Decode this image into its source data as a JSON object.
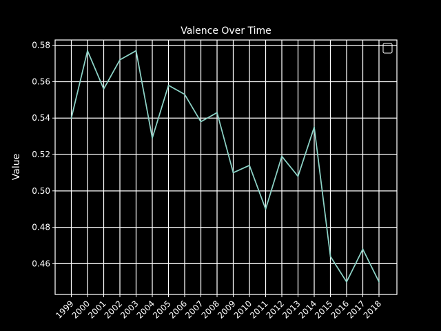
{
  "chart_data": {
    "type": "line",
    "title": "Valence Over Time",
    "xlabel": "",
    "ylabel": "Value",
    "x": [
      "1999",
      "2000",
      "2001",
      "2002",
      "2003",
      "2004",
      "2005",
      "2006",
      "2007",
      "2008",
      "2009",
      "2010",
      "2011",
      "2012",
      "2013",
      "2014",
      "2015",
      "2016",
      "2017",
      "2018"
    ],
    "series": [
      {
        "values": [
          0.54,
          0.577,
          0.556,
          0.572,
          0.577,
          0.529,
          0.558,
          0.553,
          0.538,
          0.543,
          0.51,
          0.514,
          0.49,
          0.519,
          0.508,
          0.535,
          0.464,
          0.45,
          0.468,
          0.45
        ],
        "color": "#8dd3c7"
      }
    ],
    "yticks": [
      "0.46",
      "0.48",
      "0.50",
      "0.52",
      "0.54",
      "0.56",
      "0.58"
    ],
    "ylim": [
      0.4431,
      0.5829
    ],
    "grid": true,
    "legend": "top-right",
    "colors": {
      "background": "#000000",
      "foreground": "#ffffff"
    }
  }
}
